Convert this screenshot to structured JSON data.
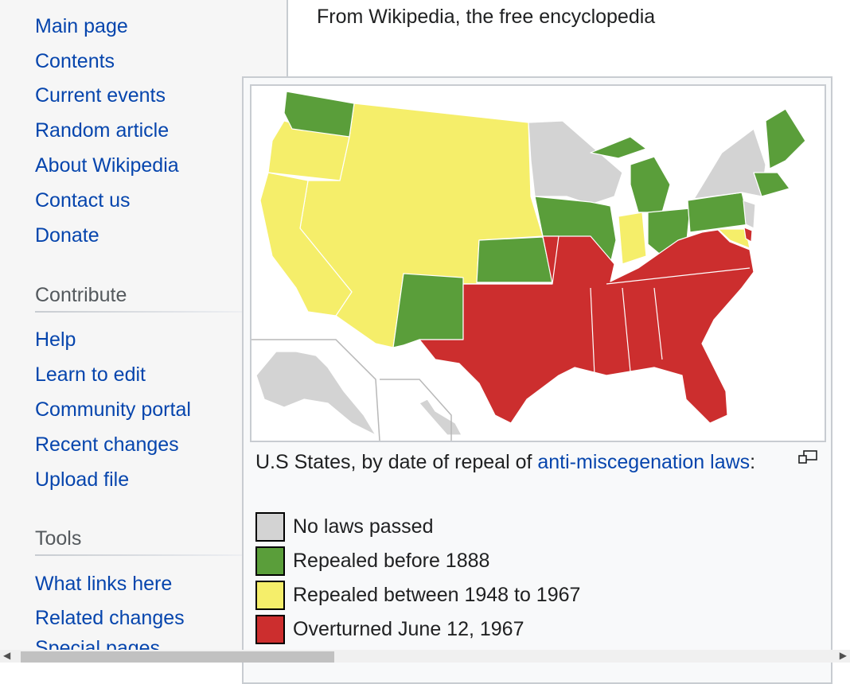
{
  "sidebar": {
    "navigation": [
      "Main page",
      "Contents",
      "Current events",
      "Random article",
      "About Wikipedia",
      "Contact us",
      "Donate"
    ],
    "contribute_heading": "Contribute",
    "contribute": [
      "Help",
      "Learn to edit",
      "Community portal",
      "Recent changes",
      "Upload file"
    ],
    "tools_heading": "Tools",
    "tools": [
      "What links here",
      "Related changes",
      "Special pages"
    ]
  },
  "tagline": "From Wikipedia, the free encyclopedia",
  "popup": {
    "caption_prefix": "U.S States, by date of repeal of ",
    "caption_link": "anti-miscegenation laws",
    "caption_suffix": ":",
    "enlarge_icon": "enlarge-icon",
    "legend": [
      {
        "label": "No laws passed",
        "color": "#d3d3d3"
      },
      {
        "label": "Repealed before 1888",
        "color": "#5a9e3a"
      },
      {
        "label": "Repealed between 1948 to 1967",
        "color": "#f5ee6a"
      },
      {
        "label": "Overturned June 12, 1967",
        "color": "#cc2e2e"
      }
    ]
  },
  "colors": {
    "link": "#0645ad",
    "none": "#d3d3d3",
    "green": "#5a9e3a",
    "yellow": "#f5ee6a",
    "red": "#cc2e2e"
  }
}
